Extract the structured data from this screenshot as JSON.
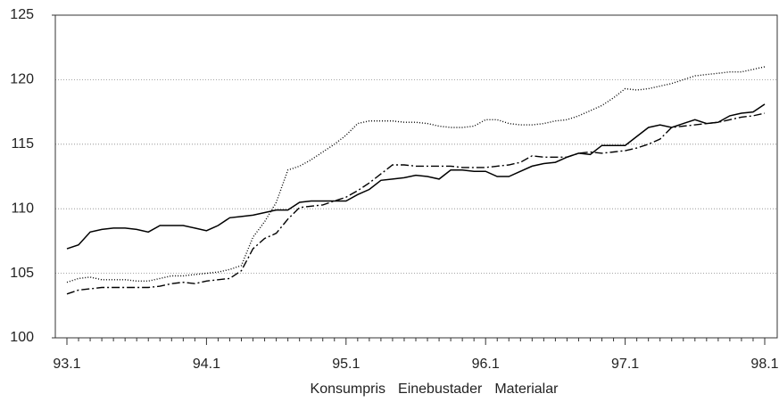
{
  "chart_data": {
    "type": "line",
    "categories": [
      "93.1",
      null,
      null,
      null,
      null,
      null,
      null,
      null,
      null,
      null,
      null,
      null,
      "94.1",
      null,
      null,
      null,
      null,
      null,
      null,
      null,
      null,
      null,
      null,
      null,
      "95.1",
      null,
      null,
      null,
      null,
      null,
      null,
      null,
      null,
      null,
      null,
      null,
      "96.1",
      null,
      null,
      null,
      null,
      null,
      null,
      null,
      null,
      null,
      null,
      null,
      "97.1",
      null,
      null,
      null,
      null,
      null,
      null,
      null,
      null,
      null,
      null,
      null,
      "98.1"
    ],
    "series": [
      {
        "name": "Konsumpris",
        "color": "#000000",
        "style": "solid",
        "values": [
          106.9,
          107.2,
          108.2,
          108.4,
          108.5,
          108.5,
          108.4,
          108.2,
          108.7,
          108.7,
          108.7,
          108.5,
          108.3,
          108.7,
          109.3,
          109.4,
          109.5,
          109.7,
          109.9,
          109.9,
          110.5,
          110.6,
          110.6,
          110.6,
          110.6,
          111.1,
          111.5,
          112.2,
          112.3,
          112.4,
          112.6,
          112.5,
          112.3,
          113.0,
          113.0,
          112.9,
          112.9,
          112.5,
          112.5,
          112.9,
          113.3,
          113.5,
          113.6,
          114.0,
          114.3,
          114.2,
          114.9,
          114.9,
          114.9,
          115.6,
          116.3,
          116.5,
          116.3,
          116.6,
          116.9,
          116.6,
          116.7,
          117.2,
          117.4,
          117.5,
          118.1
        ]
      },
      {
        "name": "Einebustader",
        "color": "#000000",
        "style": "dotted",
        "values": [
          104.3,
          104.6,
          104.7,
          104.5,
          104.5,
          104.5,
          104.4,
          104.4,
          104.6,
          104.8,
          104.8,
          104.9,
          105.0,
          105.1,
          105.3,
          105.6,
          107.8,
          109.0,
          110.5,
          113.0,
          113.3,
          113.8,
          114.4,
          115.0,
          115.7,
          116.6,
          116.8,
          116.8,
          116.8,
          116.7,
          116.7,
          116.6,
          116.4,
          116.3,
          116.3,
          116.4,
          116.9,
          116.9,
          116.6,
          116.5,
          116.5,
          116.6,
          116.8,
          116.9,
          117.2,
          117.6,
          118.0,
          118.6,
          119.3,
          119.2,
          119.3,
          119.5,
          119.7,
          120.0,
          120.3,
          120.4,
          120.5,
          120.6,
          120.6,
          120.8,
          121.0
        ]
      },
      {
        "name": "Materialar",
        "color": "#000000",
        "style": "dashdot",
        "values": [
          103.4,
          103.7,
          103.8,
          103.9,
          103.9,
          103.9,
          103.9,
          103.9,
          104.0,
          104.2,
          104.3,
          104.2,
          104.4,
          104.5,
          104.6,
          105.2,
          106.9,
          107.7,
          108.1,
          109.2,
          110.1,
          110.2,
          110.3,
          110.6,
          110.9,
          111.4,
          112.0,
          112.7,
          113.4,
          113.4,
          113.3,
          113.3,
          113.3,
          113.3,
          113.2,
          113.2,
          113.2,
          113.3,
          113.4,
          113.6,
          114.1,
          114.0,
          114.0,
          114.0,
          114.3,
          114.4,
          114.3,
          114.4,
          114.5,
          114.7,
          115.0,
          115.4,
          116.3,
          116.4,
          116.5,
          116.6,
          116.7,
          116.9,
          117.1,
          117.2,
          117.4
        ]
      }
    ],
    "ylim": [
      100,
      125
    ],
    "yticks": [
      100,
      105,
      110,
      115,
      120,
      125
    ],
    "grid": true,
    "legend": "bottom"
  }
}
